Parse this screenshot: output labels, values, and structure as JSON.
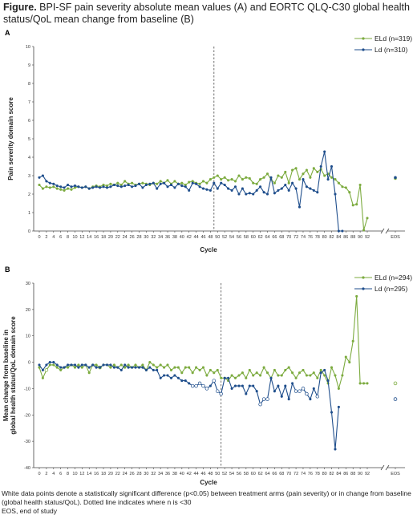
{
  "caption": {
    "label": "Figure.",
    "text": "BPI-SF pain severity absolute mean values (A) and EORTC QLQ-C30 global health status/QoL mean change from baseline (B)"
  },
  "colors": {
    "eld": "#7cab3f",
    "ld": "#1f4e8c",
    "axis": "#444444",
    "dashed": "#333333"
  },
  "footnote": {
    "line1": "White data points denote a statistically significant difference (p<0.05) between treatment arms (pain severity) or in change from baseline (global health status/QoL). Dotted line indicates where n is <30",
    "line2": "EOS, end of study"
  },
  "chart_data": [
    {
      "panel": "A",
      "type": "line",
      "xlabel": "Cycle",
      "ylabel": "Pain severity domain score",
      "ylim": [
        0,
        10
      ],
      "yticks": [
        0,
        1,
        2,
        3,
        4,
        5,
        6,
        7,
        8,
        9,
        10
      ],
      "xtick_labels": [
        "0",
        "2",
        "4",
        "6",
        "8",
        "10",
        "12",
        "14",
        "16",
        "18",
        "20",
        "22",
        "24",
        "26",
        "28",
        "30",
        "32",
        "34",
        "36",
        "38",
        "40",
        "42",
        "44",
        "46",
        "48",
        "50",
        "52",
        "54",
        "56",
        "58",
        "60",
        "62",
        "64",
        "66",
        "68",
        "70",
        "72",
        "74",
        "76",
        "78",
        "80",
        "82",
        "84",
        "86",
        "88",
        "90",
        "92",
        "EOS"
      ],
      "dashed_at_cycle": 49,
      "legend": [
        "ELd (n=319)",
        "Ld (n=310)"
      ],
      "series": [
        {
          "name": "ELd (n=319)",
          "x": [
            0,
            1,
            2,
            3,
            4,
            5,
            6,
            7,
            8,
            9,
            10,
            11,
            12,
            13,
            14,
            15,
            16,
            17,
            18,
            19,
            20,
            21,
            22,
            23,
            24,
            25,
            26,
            27,
            28,
            29,
            30,
            31,
            32,
            33,
            34,
            35,
            36,
            37,
            38,
            39,
            40,
            41,
            42,
            43,
            44,
            45,
            46,
            47,
            48,
            49,
            50,
            51,
            52,
            53,
            54,
            55,
            56,
            57,
            58,
            59,
            60,
            61,
            62,
            63,
            64,
            65,
            66,
            67,
            68,
            69,
            70,
            71,
            72,
            73,
            74,
            75,
            76,
            77,
            78,
            79,
            80,
            81,
            82,
            83,
            84,
            85,
            86,
            87,
            88,
            89,
            90,
            91,
            92
          ],
          "y": [
            2.5,
            2.3,
            2.4,
            2.35,
            2.4,
            2.3,
            2.25,
            2.2,
            2.3,
            2.25,
            2.35,
            2.4,
            2.35,
            2.4,
            2.3,
            2.4,
            2.45,
            2.4,
            2.5,
            2.45,
            2.55,
            2.5,
            2.6,
            2.5,
            2.7,
            2.55,
            2.6,
            2.5,
            2.55,
            2.6,
            2.55,
            2.5,
            2.6,
            2.55,
            2.7,
            2.6,
            2.75,
            2.55,
            2.7,
            2.55,
            2.6,
            2.5,
            2.65,
            2.7,
            2.6,
            2.55,
            2.7,
            2.6,
            2.8,
            2.9,
            3.0,
            2.8,
            2.9,
            2.75,
            2.8,
            2.7,
            3.0,
            2.8,
            2.9,
            2.85,
            2.6,
            2.55,
            2.8,
            2.9,
            3.1,
            2.8,
            2.6,
            3.0,
            2.9,
            3.2,
            2.6,
            3.3,
            3.4,
            2.8,
            3.1,
            3.3,
            2.9,
            3.4,
            3.2,
            3.35,
            3.0,
            3.1,
            2.9,
            2.8,
            2.6,
            2.4,
            2.35,
            2.1,
            1.4,
            1.45,
            2.5,
            0.05,
            0.7
          ],
          "eos": 2.85
        },
        {
          "name": "Ld (n=310)",
          "x": [
            0,
            1,
            2,
            3,
            4,
            5,
            6,
            7,
            8,
            9,
            10,
            11,
            12,
            13,
            14,
            15,
            16,
            17,
            18,
            19,
            20,
            21,
            22,
            23,
            24,
            25,
            26,
            27,
            28,
            29,
            30,
            31,
            32,
            33,
            34,
            35,
            36,
            37,
            38,
            39,
            40,
            41,
            42,
            43,
            44,
            45,
            46,
            47,
            48,
            49,
            50,
            51,
            52,
            53,
            54,
            55,
            56,
            57,
            58,
            59,
            60,
            61,
            62,
            63,
            64,
            65,
            66,
            67,
            68,
            69,
            70,
            71,
            72,
            73,
            74,
            75,
            76,
            77,
            78,
            79,
            80,
            81,
            82,
            83,
            84,
            85
          ],
          "y": [
            2.9,
            3.0,
            2.7,
            2.6,
            2.55,
            2.45,
            2.4,
            2.35,
            2.5,
            2.4,
            2.45,
            2.4,
            2.35,
            2.4,
            2.3,
            2.35,
            2.4,
            2.35,
            2.4,
            2.35,
            2.4,
            2.5,
            2.45,
            2.4,
            2.45,
            2.5,
            2.4,
            2.45,
            2.55,
            2.35,
            2.5,
            2.55,
            2.6,
            2.3,
            2.55,
            2.6,
            2.4,
            2.5,
            2.35,
            2.55,
            2.45,
            2.4,
            2.2,
            2.6,
            2.55,
            2.4,
            2.3,
            2.25,
            2.2,
            2.6,
            2.3,
            2.6,
            2.5,
            2.3,
            2.2,
            2.4,
            2.0,
            2.3,
            2.0,
            2.05,
            2.0,
            2.2,
            2.4,
            2.1,
            2.0,
            2.9,
            2.05,
            2.2,
            2.3,
            2.5,
            2.2,
            2.6,
            2.3,
            1.3,
            2.8,
            2.4,
            2.3,
            2.2,
            2.1,
            3.5,
            4.3,
            2.8,
            3.5,
            2.0,
            0.0,
            0.0
          ],
          "eos": 2.9
        }
      ]
    },
    {
      "panel": "B",
      "type": "line",
      "xlabel": "Cycle",
      "ylabel": "Mean change from baseline in global health status/QoL domain score",
      "ylim": [
        -40,
        30
      ],
      "yticks": [
        -40,
        -30,
        -20,
        -10,
        0,
        10,
        20,
        30
      ],
      "xtick_labels": [
        "0",
        "2",
        "4",
        "6",
        "8",
        "10",
        "12",
        "14",
        "16",
        "18",
        "20",
        "22",
        "24",
        "26",
        "28",
        "30",
        "32",
        "34",
        "36",
        "38",
        "40",
        "42",
        "44",
        "46",
        "48",
        "50",
        "52",
        "54",
        "56",
        "58",
        "60",
        "62",
        "64",
        "66",
        "68",
        "70",
        "72",
        "74",
        "76",
        "78",
        "80",
        "82",
        "84",
        "86",
        "88",
        "90",
        "92",
        "EOS"
      ],
      "dashed_at_cycle": 51,
      "legend": [
        "ELd (n=294)",
        "Ld (n=295)"
      ],
      "series": [
        {
          "name": "ELd (n=294)",
          "x": [
            0,
            1,
            2,
            3,
            4,
            5,
            6,
            7,
            8,
            9,
            10,
            11,
            12,
            13,
            14,
            15,
            16,
            17,
            18,
            19,
            20,
            21,
            22,
            23,
            24,
            25,
            26,
            27,
            28,
            29,
            30,
            31,
            32,
            33,
            34,
            35,
            36,
            37,
            38,
            39,
            40,
            41,
            42,
            43,
            44,
            45,
            46,
            47,
            48,
            49,
            50,
            51,
            52,
            53,
            54,
            55,
            56,
            57,
            58,
            59,
            60,
            61,
            62,
            63,
            64,
            65,
            66,
            67,
            68,
            69,
            70,
            71,
            72,
            73,
            74,
            75,
            76,
            77,
            78,
            79,
            80,
            81,
            82,
            83,
            84,
            85,
            86,
            87,
            88,
            89,
            90,
            91,
            92
          ],
          "y": [
            -2,
            -6,
            -3,
            -1,
            -1,
            -2,
            -3,
            -2,
            -2,
            -1,
            -2,
            -1,
            -2,
            -1,
            -4,
            -1,
            -1,
            -2,
            -1,
            -1,
            -2,
            -1,
            -2,
            -1,
            -2,
            -1,
            -2,
            -1,
            -2,
            -1,
            -3,
            0,
            -1,
            -2,
            -1,
            -2,
            -1,
            -3,
            -2,
            -2,
            -4,
            -2,
            -2,
            -4,
            -2,
            -3,
            -2,
            -5,
            -3,
            -4,
            -3,
            -6,
            -6,
            -7,
            -5,
            -6,
            -5,
            -4,
            -6,
            -3,
            -5,
            -4,
            -5,
            -2,
            -4,
            -6,
            -3,
            -5,
            -5,
            -3,
            -2,
            -4,
            -6,
            -4,
            -3,
            -5,
            -5,
            -4,
            -6,
            -3,
            -5,
            -8,
            -2,
            -5,
            -10,
            -5,
            2,
            0,
            8,
            25,
            -8,
            -8,
            -8
          ],
          "open_points": [
            2,
            17
          ],
          "eos": -8
        },
        {
          "name": "Ld (n=295)",
          "x": [
            0,
            1,
            2,
            3,
            4,
            5,
            6,
            7,
            8,
            9,
            10,
            11,
            12,
            13,
            14,
            15,
            16,
            17,
            18,
            19,
            20,
            21,
            22,
            23,
            24,
            25,
            26,
            27,
            28,
            29,
            30,
            31,
            32,
            33,
            34,
            35,
            36,
            37,
            38,
            39,
            40,
            41,
            42,
            43,
            44,
            45,
            46,
            47,
            48,
            49,
            50,
            51,
            52,
            53,
            54,
            55,
            56,
            57,
            58,
            59,
            60,
            61,
            62,
            63,
            64,
            65,
            66,
            67,
            68,
            69,
            70,
            71,
            72,
            73,
            74,
            75,
            76,
            77,
            78,
            79,
            80,
            81,
            82,
            83,
            84,
            85
          ],
          "y": [
            -1,
            -3,
            -1,
            0,
            0,
            -1,
            -2,
            -2,
            -1,
            -1,
            -1,
            -2,
            -1,
            -1,
            -2,
            -1,
            -2,
            -2,
            -1,
            -1,
            -1,
            -2,
            -2,
            -3,
            -1,
            -2,
            -2,
            -2,
            -2,
            -2,
            -3,
            -2,
            -3,
            -3,
            -6,
            -5,
            -5,
            -6,
            -5,
            -6,
            -7,
            -7,
            -8,
            -9,
            -9,
            -8,
            -9,
            -10,
            -9,
            -7,
            -11,
            -12,
            -6,
            -6,
            -10,
            -9,
            -9,
            -9,
            -12,
            -9,
            -9,
            -11,
            -16,
            -14,
            -14,
            -6,
            -11,
            -9,
            -13,
            -9,
            -14,
            -8,
            -11,
            -11,
            -10,
            -12,
            -14,
            -10,
            -13,
            -4,
            -3,
            -7,
            -19,
            -33,
            -17,
            null
          ],
          "open_points": [
            43,
            44,
            45,
            46,
            47,
            49,
            50,
            51,
            62,
            63,
            64,
            72,
            73,
            74,
            75,
            78
          ],
          "eos": -14
        }
      ]
    }
  ]
}
